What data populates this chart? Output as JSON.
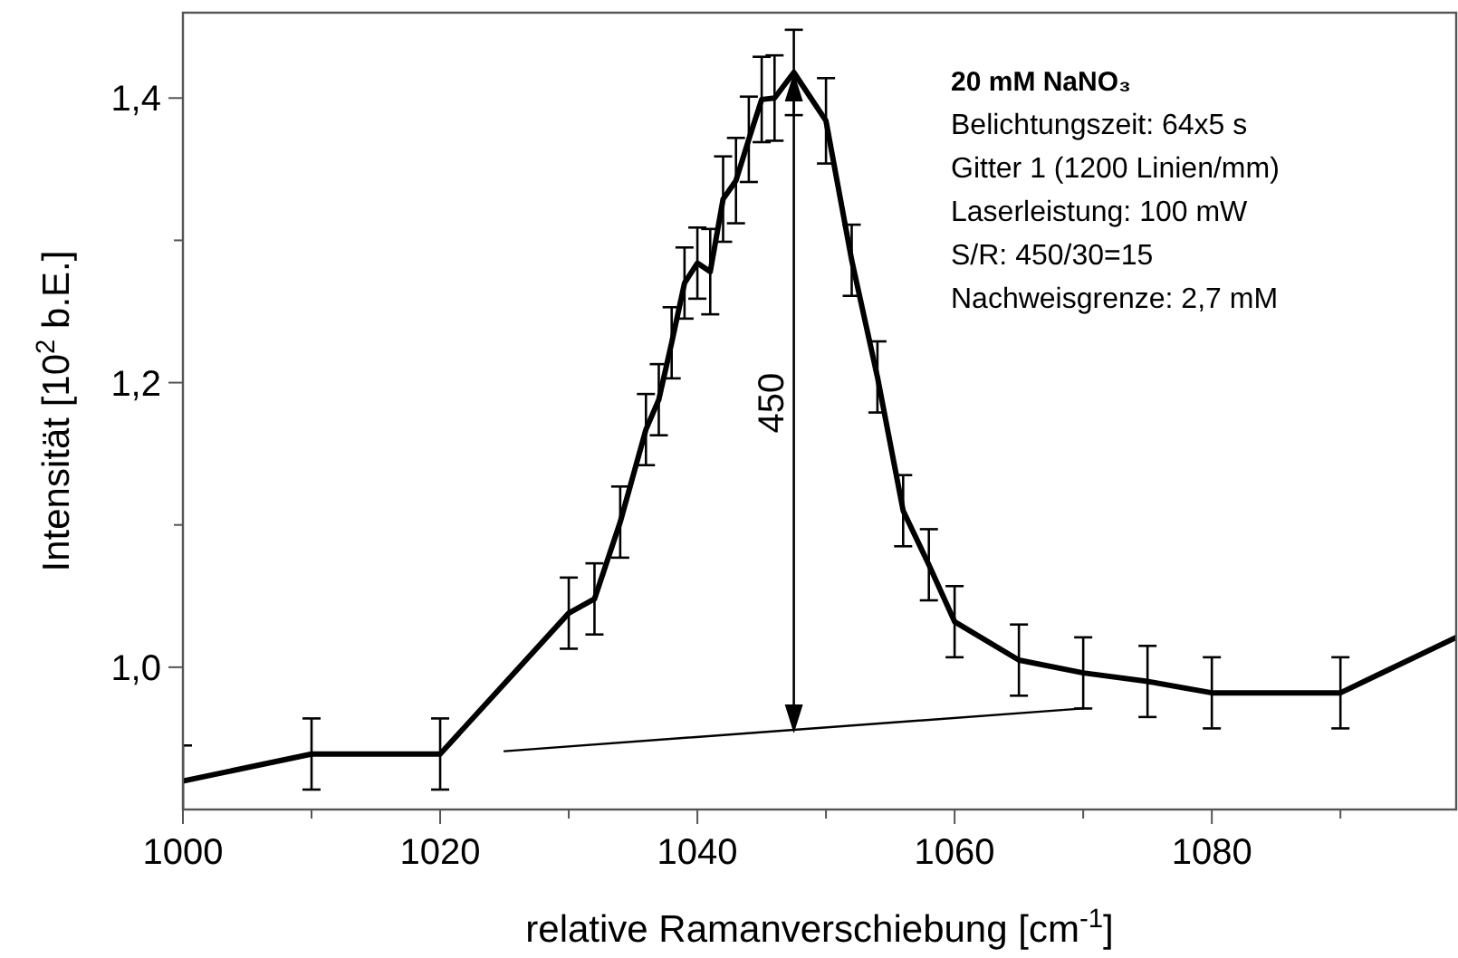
{
  "chart_data": {
    "type": "line",
    "xlabel": "relative Ramanverschiebung [cm$^{-1}$]",
    "ylabel": "Intensität [10$^{2}$ b.E.]",
    "xlim": [
      1000,
      1099
    ],
    "ylim": [
      0.9,
      1.46
    ],
    "xticks": [
      1000,
      {
        "value": 1010,
        "label": null
      },
      1020,
      {
        "value": 1030,
        "label": null
      },
      1040,
      {
        "value": 1050,
        "label": null
      },
      1060,
      {
        "value": 1070,
        "label": null
      },
      1080,
      {
        "value": 1090,
        "label": null
      }
    ],
    "yticks": [
      {
        "value": 1.0,
        "label": "1,0"
      },
      {
        "value": 1.1,
        "label": null
      },
      {
        "value": 1.2,
        "label": "1,2"
      },
      {
        "value": 1.3,
        "label": null
      },
      {
        "value": 1.4,
        "label": "1,4"
      }
    ],
    "grid": false,
    "marker": "none",
    "line_style": "solid",
    "series": [
      {
        "color": "#000000",
        "x": [
          1000,
          1010,
          1020,
          1030,
          1032,
          1034,
          1036,
          1037,
          1038,
          1039,
          1040,
          1041,
          1042,
          1043,
          1044,
          1045,
          1046,
          1047.5,
          1050,
          1052,
          1054,
          1056,
          1058,
          1060,
          1065,
          1070,
          1075,
          1080,
          1090,
          1099
        ],
        "values": [
          0.92,
          0.939,
          0.939,
          1.038,
          1.048,
          1.102,
          1.167,
          1.188,
          1.228,
          1.27,
          1.284,
          1.278,
          1.329,
          1.342,
          1.371,
          1.399,
          1.4,
          1.418,
          1.384,
          1.286,
          1.204,
          1.11,
          1.072,
          1.032,
          1.005,
          0.996,
          0.99,
          0.982,
          0.982,
          1.021
        ],
        "errors": [
          0.025,
          0.025,
          0.025,
          0.025,
          0.025,
          0.025,
          0.025,
          0.025,
          0.025,
          0.025,
          0.025,
          0.03,
          0.03,
          0.03,
          0.03,
          0.03,
          0.03,
          0.03,
          0.03,
          0.025,
          0.025,
          0.025,
          0.025,
          0.025,
          0.025,
          0.025,
          0.025,
          0.025,
          0.025,
          null
        ]
      },
      {
        "type": "line",
        "color": "#000000",
        "x": [
          1025,
          1070
        ],
        "values": [
          0.941,
          0.971
        ]
      }
    ],
    "annotations": [
      "450",
      "20 mM NaNO₃",
      "Belichtungszeit: 64x5 s",
      "Gitter 1 (1200 Linien/mm)",
      "Laserleistung: 100 mW",
      "S/R: 450/30=15",
      "Nachweisgrenze: 2,7 mM"
    ]
  }
}
